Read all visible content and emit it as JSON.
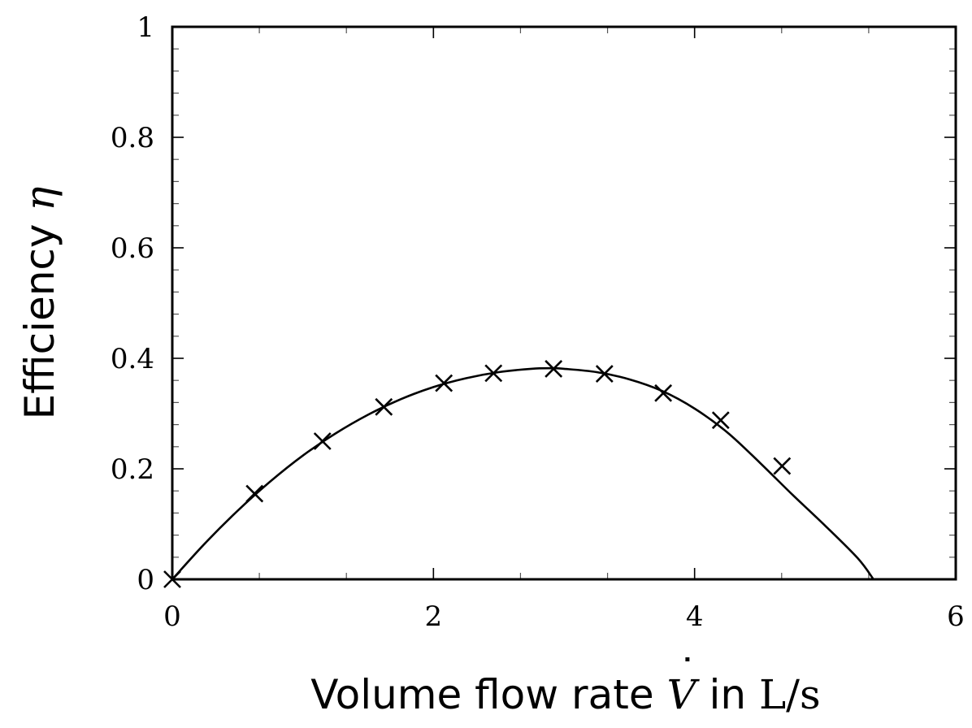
{
  "chart_data": {
    "type": "scatter",
    "xlabel_parts": {
      "text": "Volume flow rate ",
      "symbol": "V",
      "symbol_accent": "˙",
      "joiner": " in ",
      "unit": "L/s"
    },
    "ylabel_parts": {
      "text": "Efficiency ",
      "symbol": "η"
    },
    "xlim": [
      0,
      6
    ],
    "ylim": [
      0,
      1
    ],
    "x_ticks": [
      0,
      2,
      4,
      6
    ],
    "x_tick_labels": [
      "0",
      "2",
      "4",
      "6"
    ],
    "y_ticks": [
      0,
      0.2,
      0.4,
      0.6,
      0.8,
      1
    ],
    "y_tick_labels": [
      "0",
      "0.2",
      "0.4",
      "0.6",
      "0.8",
      "1"
    ],
    "grid": false,
    "series": [
      {
        "type": "scatter",
        "marker": "x",
        "x": [
          0,
          0.63,
          1.15,
          1.62,
          2.08,
          2.46,
          2.92,
          3.31,
          3.76,
          4.2,
          4.67
        ],
        "y": [
          0,
          0.155,
          0.25,
          0.312,
          0.355,
          0.373,
          0.381,
          0.372,
          0.337,
          0.288,
          0.205
        ]
      },
      {
        "type": "line",
        "x": [
          0,
          0.25,
          0.5,
          0.75,
          1,
          1.25,
          1.5,
          1.75,
          2,
          2.25,
          2.5,
          2.75,
          2.9,
          3,
          3.25,
          3.5,
          3.75,
          4,
          4.25,
          4.5,
          4.75,
          5,
          5.25,
          5.37
        ],
        "y": [
          0,
          0.065,
          0.124,
          0.177,
          0.224,
          0.264,
          0.298,
          0.326,
          0.348,
          0.364,
          0.375,
          0.381,
          0.382,
          0.381,
          0.375,
          0.362,
          0.341,
          0.309,
          0.266,
          0.211,
          0.153,
          0.097,
          0.038,
          0
        ]
      }
    ]
  }
}
